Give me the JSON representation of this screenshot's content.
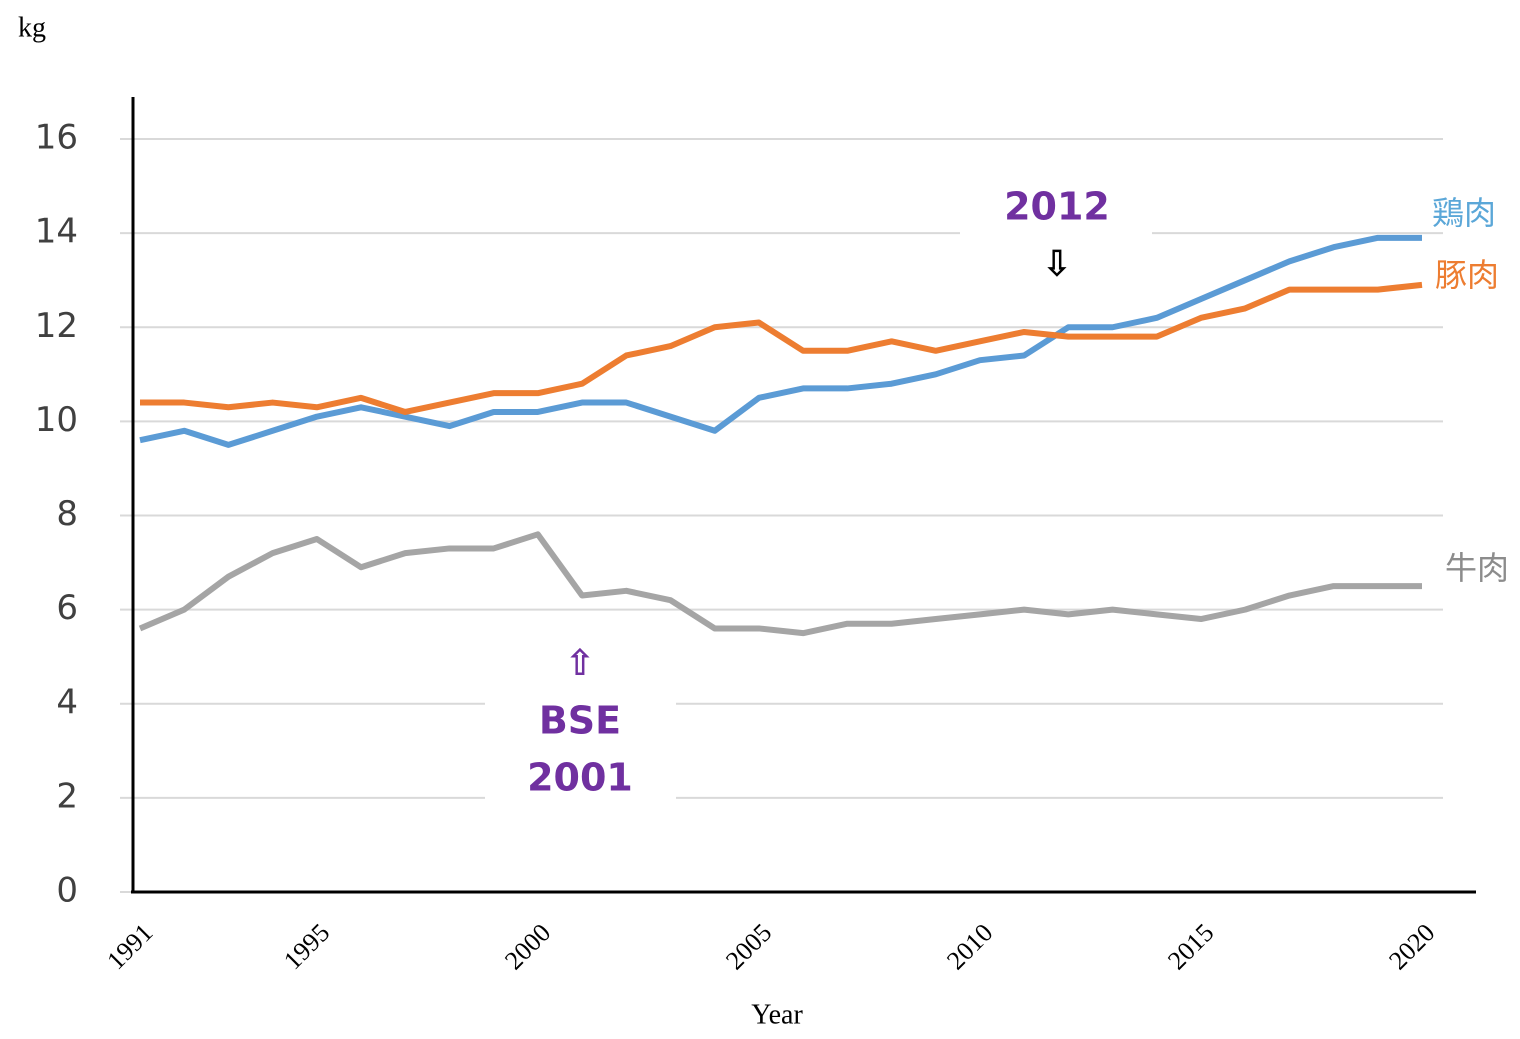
{
  "chart_data": {
    "type": "line",
    "ylabel": "kg",
    "xlabel": "Year",
    "x": [
      1991,
      1992,
      1993,
      1994,
      1995,
      1996,
      1997,
      1998,
      1999,
      2000,
      2001,
      2002,
      2003,
      2004,
      2005,
      2006,
      2007,
      2008,
      2009,
      2010,
      2011,
      2012,
      2013,
      2014,
      2015,
      2016,
      2017,
      2018,
      2019,
      2020
    ],
    "series": [
      {
        "name": "鶏肉",
        "color": "#5b9bd5",
        "label_color": "#5ba7d8",
        "values": [
          9.6,
          9.8,
          9.5,
          9.8,
          10.1,
          10.3,
          10.1,
          9.9,
          10.2,
          10.2,
          10.4,
          10.4,
          10.1,
          9.8,
          10.5,
          10.7,
          10.7,
          10.8,
          11.0,
          11.3,
          11.4,
          12.0,
          12.0,
          12.2,
          12.6,
          13.0,
          13.4,
          13.7,
          13.9,
          13.9
        ]
      },
      {
        "name": "豚肉",
        "color": "#ed7d31",
        "label_color": "#ed7d31",
        "values": [
          10.4,
          10.4,
          10.3,
          10.4,
          10.3,
          10.5,
          10.2,
          10.4,
          10.6,
          10.6,
          10.8,
          11.4,
          11.6,
          12.0,
          12.1,
          11.5,
          11.5,
          11.7,
          11.5,
          11.7,
          11.9,
          11.8,
          11.8,
          11.8,
          12.2,
          12.4,
          12.8,
          12.8,
          12.8,
          12.9
        ]
      },
      {
        "name": "牛肉",
        "color": "#a5a5a5",
        "label_color": "#8c8c8c",
        "values": [
          5.6,
          6.0,
          6.7,
          7.2,
          7.5,
          6.9,
          7.2,
          7.3,
          7.3,
          7.6,
          6.3,
          6.4,
          6.2,
          5.6,
          5.6,
          5.5,
          5.7,
          5.7,
          5.8,
          5.9,
          6.0,
          5.9,
          6.0,
          5.9,
          5.8,
          6.0,
          6.3,
          6.5,
          6.5,
          6.5
        ]
      }
    ],
    "xlim": [
      1991,
      2020
    ],
    "xticks": [
      1991,
      1995,
      2000,
      2005,
      2010,
      2015,
      2020
    ],
    "ylim": [
      0,
      16
    ],
    "yticks": [
      0,
      2,
      4,
      6,
      8,
      10,
      12,
      14,
      16
    ],
    "grid": true,
    "annotations": [
      "2012",
      "⇩",
      "⇧",
      "BSE",
      "2001"
    ],
    "annotation_colors": [
      "#7030a0",
      "#000000",
      "#7030a0",
      "#7030a0",
      "#7030a0"
    ]
  }
}
